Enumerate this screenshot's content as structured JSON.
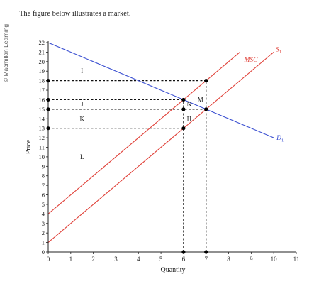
{
  "credit": "© Macmillan Learning",
  "prompt": "The figure below illustrates a market.",
  "chart_data": {
    "type": "line",
    "xlabel": "Quantity",
    "ylabel": "Price",
    "xlim": [
      0,
      11
    ],
    "ylim": [
      0,
      22
    ],
    "x_ticks": [
      0,
      1,
      2,
      3,
      4,
      5,
      6,
      7,
      8,
      9,
      10,
      11
    ],
    "y_ticks": [
      0,
      1,
      2,
      3,
      4,
      5,
      6,
      7,
      8,
      9,
      10,
      11,
      12,
      13,
      14,
      15,
      16,
      17,
      18,
      19,
      20,
      21,
      22
    ],
    "grid": false,
    "series": [
      {
        "name": "D1",
        "label_main": "D",
        "label_sub": "1",
        "color": "#3a4fd1",
        "points": [
          [
            0,
            22
          ],
          [
            10,
            12
          ]
        ]
      },
      {
        "name": "S1",
        "label_main": "S",
        "label_sub": "1",
        "color": "#e0423a",
        "points": [
          [
            0,
            1
          ],
          [
            10,
            21
          ]
        ]
      },
      {
        "name": "MSC",
        "label_main": "MSC",
        "label_sub": "",
        "color": "#e0423a",
        "points": [
          [
            0,
            4
          ],
          [
            8.5,
            21
          ]
        ]
      }
    ],
    "points": [
      [
        0,
        18
      ],
      [
        0,
        16
      ],
      [
        0,
        15
      ],
      [
        0,
        13
      ],
      [
        6,
        16
      ],
      [
        6,
        15
      ],
      [
        6,
        13
      ],
      [
        7,
        18
      ],
      [
        7,
        15
      ],
      [
        6,
        0
      ],
      [
        7,
        0
      ]
    ],
    "dashed_horizontal": [
      {
        "y": 18,
        "x_from": 0,
        "x_to": 7
      },
      {
        "y": 16,
        "x_from": 0,
        "x_to": 6
      },
      {
        "y": 15,
        "x_from": 0,
        "x_to": 7
      },
      {
        "y": 13,
        "x_from": 0,
        "x_to": 6
      }
    ],
    "dashed_vertical": [
      {
        "x": 6,
        "y_from": 0,
        "y_to": 16
      },
      {
        "x": 7,
        "y_from": 0,
        "y_to": 18
      }
    ],
    "region_labels": [
      {
        "text": "I",
        "x": 1.5,
        "y": 19
      },
      {
        "text": "J",
        "x": 1.5,
        "y": 15.5
      },
      {
        "text": "K",
        "x": 1.5,
        "y": 14
      },
      {
        "text": "L",
        "x": 1.5,
        "y": 10
      },
      {
        "text": "M",
        "x": 6.75,
        "y": 16
      },
      {
        "text": "N",
        "x": 6.25,
        "y": 15.5
      },
      {
        "text": "H",
        "x": 6.25,
        "y": 14
      }
    ]
  }
}
